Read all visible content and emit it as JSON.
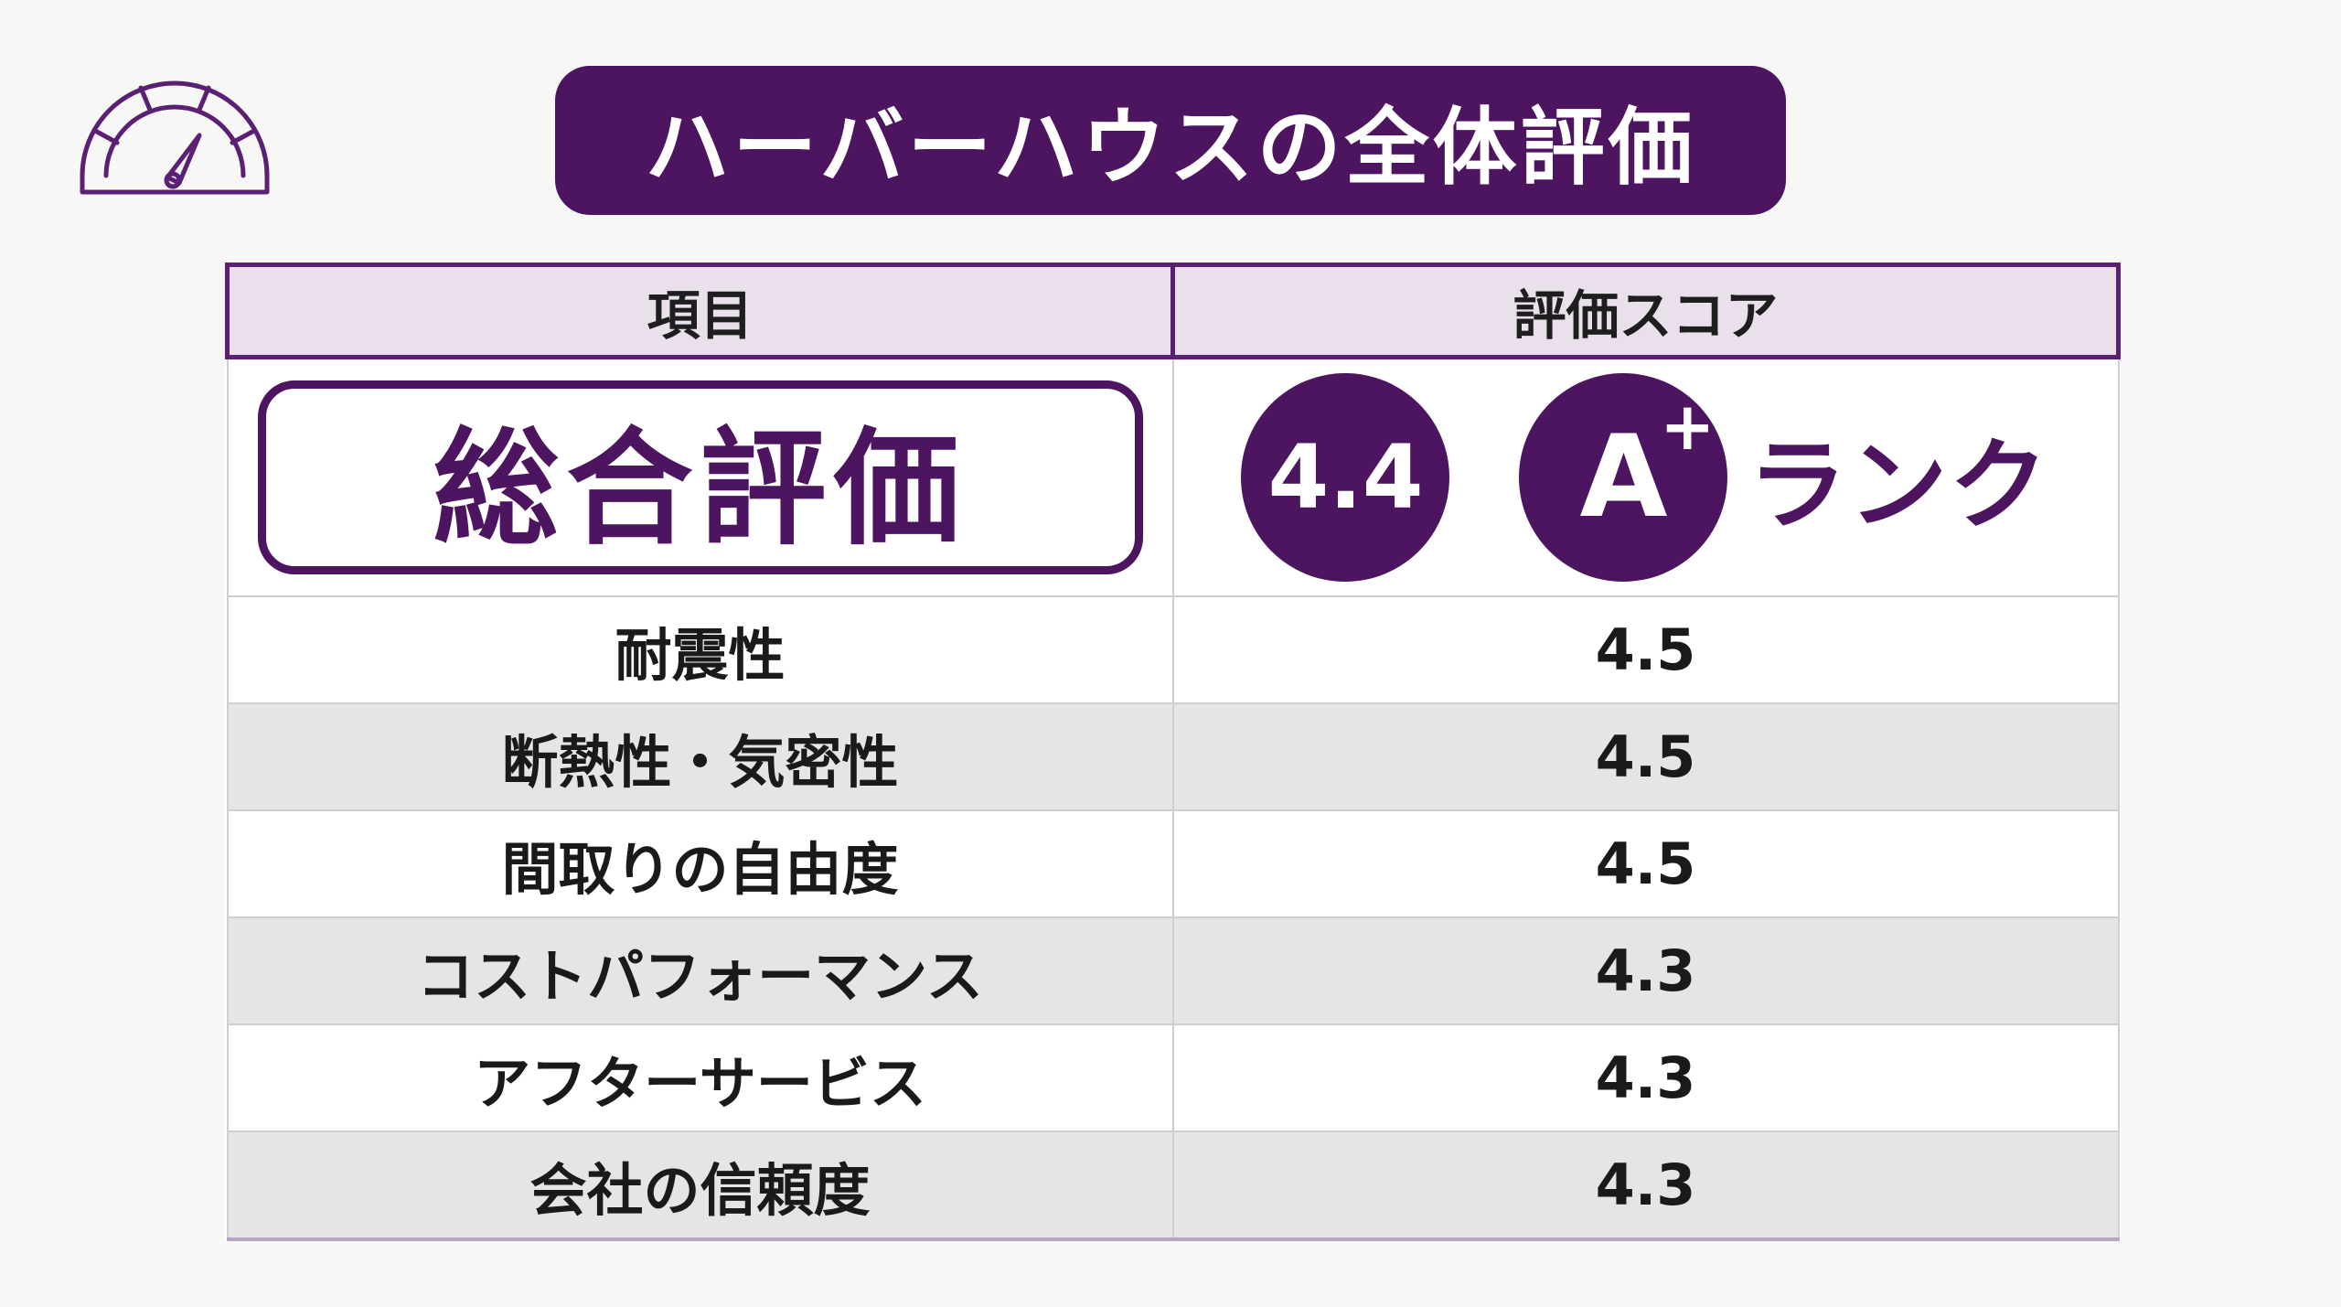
{
  "title": "ハーバーハウスの全体評価",
  "table": {
    "header": {
      "item": "項目",
      "score": "評価スコア"
    },
    "overall": {
      "label": "総合評価",
      "score": "4.4",
      "rank_letter": "A",
      "rank_modifier": "+",
      "rank_suffix": "ランク"
    },
    "rows": [
      {
        "item": "耐震性",
        "score": "4.5"
      },
      {
        "item": "断熱性・気密性",
        "score": "4.5"
      },
      {
        "item": "間取りの自由度",
        "score": "4.5"
      },
      {
        "item": "コストパフォーマンス",
        "score": "4.3"
      },
      {
        "item": "アフターサービス",
        "score": "4.3"
      },
      {
        "item": "会社の信頼度",
        "score": "4.3"
      }
    ]
  },
  "colors": {
    "accent": "#4d1560",
    "header_bg": "#e9e0ec",
    "row_shade": "#e5e5e5",
    "background": "#f7f7f5"
  },
  "icons": {
    "gauge": "speedometer-gauge-icon"
  }
}
